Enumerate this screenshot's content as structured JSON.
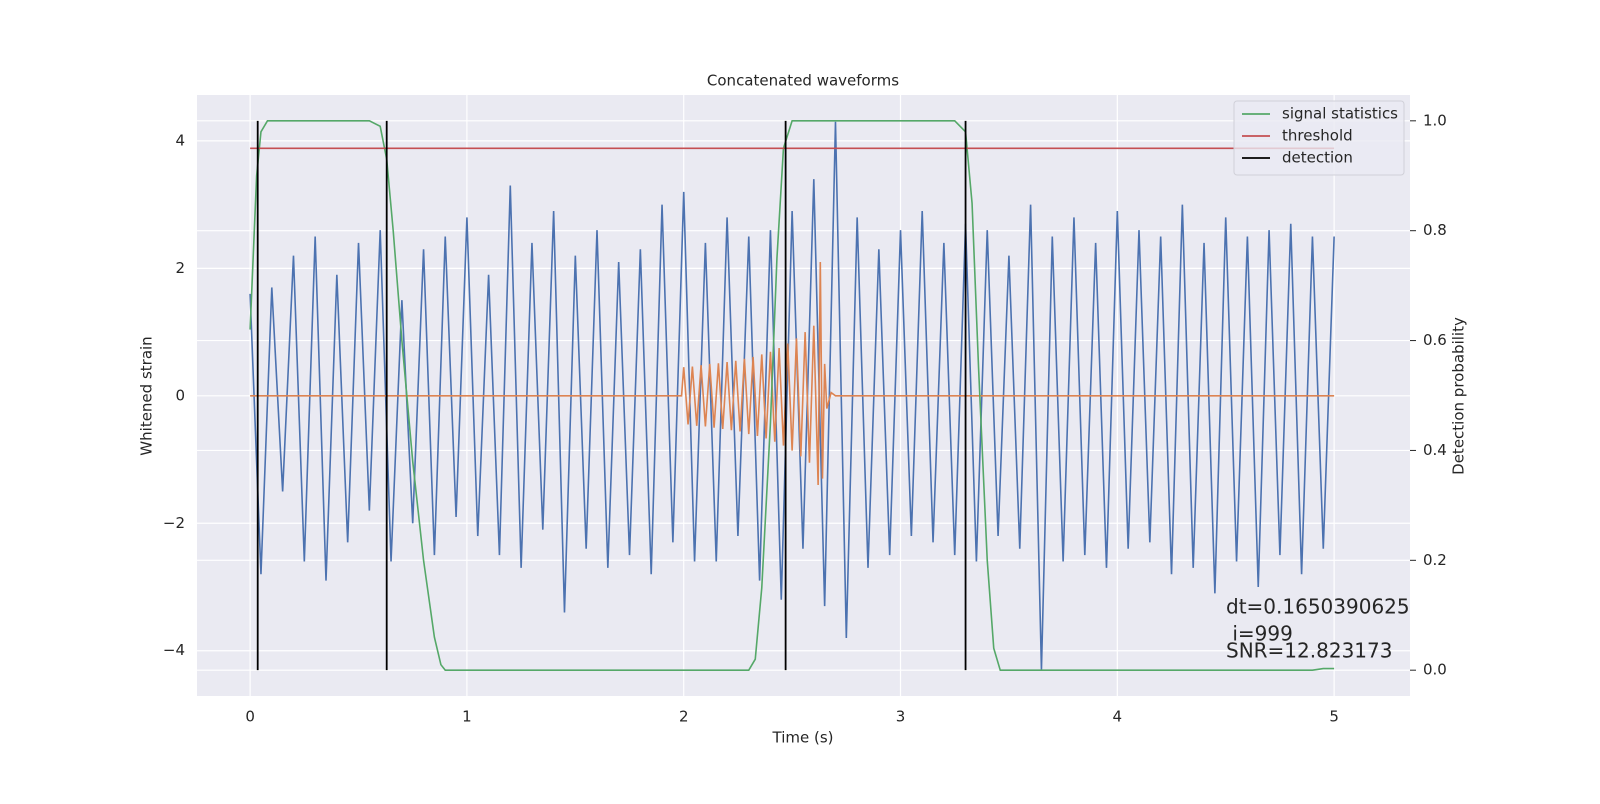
{
  "chart_data": {
    "type": "line",
    "title": "Concatenated waveforms",
    "xlabel": "Time (s)",
    "ylabel": "Whitened strain",
    "y2label": "Detection probability",
    "xlim": [
      -0.245,
      5.35
    ],
    "xticks": [
      0,
      1,
      2,
      3,
      4,
      5
    ],
    "ylim": [
      -4.71,
      4.72
    ],
    "yticks": [
      {
        "value": -4,
        "label": "−4"
      },
      {
        "value": -2,
        "label": "−2"
      },
      0,
      2,
      4
    ],
    "y2lim": [
      -0.047,
      1.047
    ],
    "y2ticks": [
      {
        "value": 0,
        "label": "0.0"
      },
      0.2,
      0.4,
      0.6,
      0.8,
      {
        "value": 1,
        "label": "1.0"
      }
    ],
    "grid": true,
    "legend": "upper right",
    "series": [
      {
        "color": "#4c72b0",
        "x": [
          0,
          0.05,
          0.1,
          0.15,
          0.2,
          0.25,
          0.3,
          0.35,
          0.4,
          0.45,
          0.5,
          0.55,
          0.6,
          0.65,
          0.7,
          0.75,
          0.8,
          0.85,
          0.9,
          0.95,
          1,
          1.05,
          1.1,
          1.15,
          1.2,
          1.25,
          1.3,
          1.35,
          1.4,
          1.45,
          1.5,
          1.55,
          1.6,
          1.65,
          1.7,
          1.75,
          1.8,
          1.85,
          1.9,
          1.95,
          2,
          2.05,
          2.1,
          2.15,
          2.2,
          2.25,
          2.3,
          2.35,
          2.4,
          2.45,
          2.5,
          2.55,
          2.6,
          2.65,
          2.7,
          2.75,
          2.8,
          2.85,
          2.9,
          2.95,
          3,
          3.05,
          3.1,
          3.15,
          3.2,
          3.25,
          3.3,
          3.35,
          3.4,
          3.45,
          3.5,
          3.55,
          3.6,
          3.65,
          3.7,
          3.75,
          3.8,
          3.85,
          3.9,
          3.95,
          4,
          4.05,
          4.1,
          4.15,
          4.2,
          4.25,
          4.3,
          4.35,
          4.4,
          4.45,
          4.5,
          4.55,
          4.6,
          4.65,
          4.7,
          4.75,
          4.8,
          4.85,
          4.9,
          4.95,
          5
        ],
        "values": [
          1.6,
          -2.8,
          1.7,
          -1.5,
          2.2,
          -2.6,
          2.5,
          -2.9,
          1.9,
          -2.3,
          2.4,
          -1.8,
          2.6,
          -2.6,
          1.5,
          -2.0,
          2.3,
          -2.5,
          2.5,
          -1.9,
          2.8,
          -2.2,
          1.9,
          -2.5,
          3.3,
          -2.7,
          2.4,
          -2.1,
          2.9,
          -3.4,
          2.2,
          -2.4,
          2.6,
          -2.7,
          2.1,
          -2.5,
          2.3,
          -2.8,
          3.0,
          -2.3,
          3.2,
          -2.6,
          2.4,
          -2.6,
          2.8,
          -2.2,
          2.5,
          -2.9,
          2.6,
          -3.2,
          2.9,
          -2.4,
          3.4,
          -3.3,
          4.3,
          -3.8,
          2.8,
          -2.7,
          2.3,
          -2.5,
          2.6,
          -2.2,
          2.9,
          -2.3,
          2.4,
          -2.5,
          2.7,
          -2.6,
          2.6,
          -2.2,
          2.2,
          -2.4,
          3.0,
          -4.3,
          2.5,
          -2.6,
          2.8,
          -2.5,
          2.4,
          -2.7,
          2.9,
          -2.4,
          2.6,
          -2.3,
          2.5,
          -2.8,
          3.0,
          -2.7,
          2.4,
          -3.1,
          2.8,
          -2.6,
          2.5,
          -3.0,
          2.6,
          -2.5,
          2.7,
          -2.8,
          2.5,
          -2.4,
          2.5
        ]
      },
      {
        "color": "#dd8452",
        "x": [
          0,
          1.99,
          2.0,
          2.02,
          2.04,
          2.06,
          2.08,
          2.1,
          2.12,
          2.14,
          2.16,
          2.18,
          2.2,
          2.22,
          2.24,
          2.26,
          2.28,
          2.3,
          2.32,
          2.34,
          2.36,
          2.38,
          2.4,
          2.42,
          2.44,
          2.46,
          2.48,
          2.5,
          2.52,
          2.54,
          2.56,
          2.58,
          2.6,
          2.62,
          2.63,
          2.64,
          2.65,
          2.66,
          2.68,
          2.7,
          5
        ],
        "values": [
          0,
          0,
          0.45,
          -0.45,
          0.46,
          -0.47,
          0.48,
          -0.48,
          0.5,
          -0.5,
          0.51,
          -0.52,
          0.53,
          -0.54,
          0.55,
          -0.56,
          0.58,
          -0.6,
          0.61,
          -0.63,
          0.65,
          -0.67,
          0.69,
          -0.72,
          0.75,
          -0.78,
          0.82,
          -0.86,
          0.9,
          -0.95,
          1.0,
          -1.05,
          1.1,
          -1.4,
          2.1,
          -1.3,
          0.5,
          -0.2,
          0.05,
          0,
          0
        ]
      },
      {
        "name": "signal statistics",
        "color": "#55a868",
        "axis": "y2",
        "x": [
          0,
          0.03,
          0.05,
          0.08,
          0.55,
          0.6,
          0.63,
          0.66,
          0.7,
          0.75,
          0.8,
          0.85,
          0.88,
          0.9,
          2.3,
          2.33,
          2.36,
          2.4,
          2.43,
          2.46,
          2.5,
          3.25,
          3.3,
          3.33,
          3.36,
          3.4,
          3.43,
          3.46,
          4.9,
          4.95,
          5
        ],
        "values": [
          0.62,
          0.9,
          0.98,
          1.0,
          1.0,
          0.99,
          0.93,
          0.8,
          0.6,
          0.38,
          0.2,
          0.06,
          0.01,
          0.0,
          0.0,
          0.02,
          0.15,
          0.45,
          0.75,
          0.95,
          1.0,
          1.0,
          0.98,
          0.85,
          0.55,
          0.2,
          0.04,
          0.0,
          0.0,
          0.003,
          0.003
        ]
      },
      {
        "name": "threshold",
        "color": "#c44e52",
        "axis": "y2",
        "x": [
          0,
          5
        ],
        "values": [
          0.95,
          0.95
        ]
      },
      {
        "name": "detection",
        "color": "#000000",
        "axis": "y2",
        "type": "vline",
        "x": [
          0.035,
          0.63,
          2.47,
          3.3
        ],
        "ymin": 0,
        "ymax": 1
      }
    ],
    "annotations": [
      "dt=0.1650390625",
      " i=999",
      "SNR=12.823173"
    ]
  }
}
